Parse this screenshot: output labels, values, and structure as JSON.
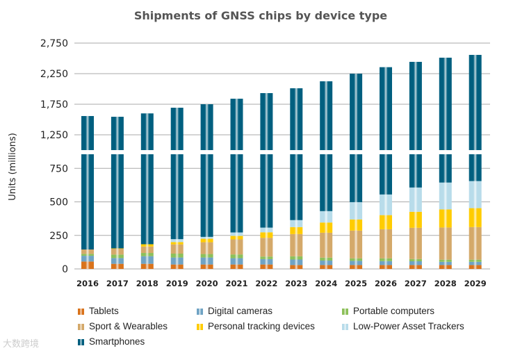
{
  "chart_data": {
    "type": "bar",
    "stacked": true,
    "title": "Shipments of GNSS chips by device type",
    "xlabel": "",
    "ylabel": "Units (millions)",
    "ylim": [
      0,
      2750
    ],
    "axis_break": [
      850,
      1000
    ],
    "yticks": [
      "0",
      "250",
      "500",
      "750",
      "1,250",
      "1,750",
      "2,250",
      "2,750"
    ],
    "ytick_values": [
      0,
      250,
      500,
      750,
      1250,
      1750,
      2250,
      2750
    ],
    "grid": true,
    "legend_position": "bottom",
    "categories": [
      "2016",
      "2017",
      "2018",
      "2019",
      "2020",
      "2021",
      "2022",
      "2023",
      "2024",
      "2025",
      "2026",
      "2027",
      "2028",
      "2029"
    ],
    "series": [
      {
        "name": "Tablets",
        "color": "#d9731c",
        "values": [
          55,
          38,
          38,
          33,
          33,
          33,
          33,
          29,
          29,
          29,
          29,
          29,
          29,
          29
        ]
      },
      {
        "name": "Digital cameras",
        "color": "#6fa3c4",
        "values": [
          43,
          43,
          57,
          52,
          52,
          47,
          40,
          41,
          33,
          31,
          29,
          28,
          24,
          24
        ]
      },
      {
        "name": "Portable computers",
        "color": "#8dc05a",
        "values": [
          14,
          26,
          24,
          29,
          26,
          28,
          19,
          24,
          22,
          19,
          21,
          17,
          16,
          16
        ]
      },
      {
        "name": "Sport & Wearables",
        "color": "#d4a96a",
        "values": [
          33,
          43,
          48,
          69,
          88,
          112,
          140,
          166,
          186,
          207,
          217,
          233,
          240,
          243
        ]
      },
      {
        "name": "Personal tracking devices",
        "color": "#ffcc00",
        "values": [
          0,
          3,
          17,
          17,
          26,
          26,
          41,
          52,
          76,
          83,
          105,
          119,
          135,
          141
        ]
      },
      {
        "name": "Low-Power Asset Trackers",
        "color": "#b8dcea",
        "values": [
          0,
          0,
          0,
          22,
          14,
          26,
          35,
          52,
          85,
          129,
          154,
          181,
          200,
          202
        ]
      },
      {
        "name": "Smartphones",
        "color": "#005f7f",
        "values": [
          1412,
          1392,
          1416,
          1471,
          1511,
          1568,
          1624,
          1647,
          1694,
          1752,
          1801,
          1836,
          1867,
          1902
        ]
      }
    ]
  },
  "watermark": "大数跨境"
}
